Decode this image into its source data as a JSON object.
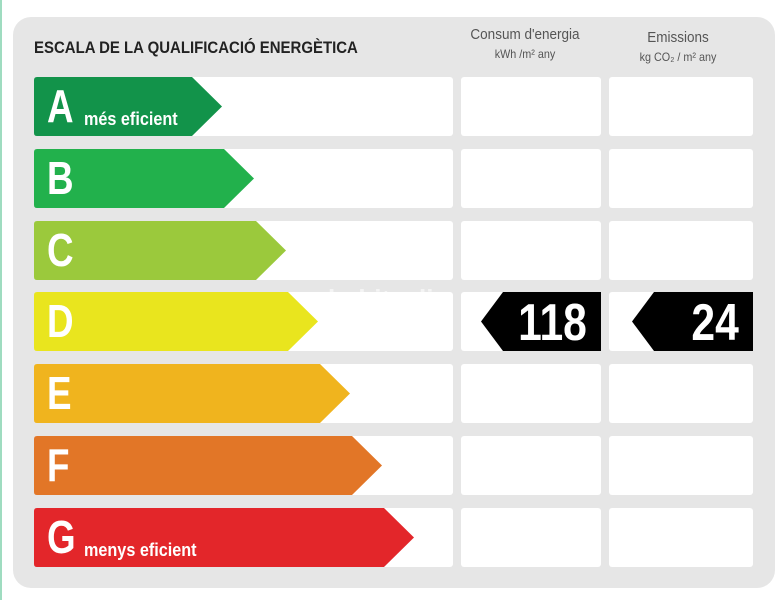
{
  "title": "ESCALA DE LA QUALIFICACIÓ ENERGÈTICA",
  "columns": {
    "consumption": {
      "title": "Consum d'energia",
      "unit": "kWh /m² any"
    },
    "emissions": {
      "title": "Emissions",
      "unit": "kg CO₂ / m² any"
    }
  },
  "ratings": [
    {
      "letter": "A",
      "label": "més eficient",
      "color": "#12934a"
    },
    {
      "letter": "B",
      "label": "",
      "color": "#22b14c"
    },
    {
      "letter": "C",
      "label": "",
      "color": "#9bc93c"
    },
    {
      "letter": "D",
      "label": "",
      "color": "#e9e51e"
    },
    {
      "letter": "E",
      "label": "",
      "color": "#f0b41e"
    },
    {
      "letter": "F",
      "label": "",
      "color": "#e27627"
    },
    {
      "letter": "G",
      "label": "menys eficient",
      "color": "#e3262a"
    }
  ],
  "result": {
    "rating": "D",
    "consumption": "118",
    "emissions": "24"
  },
  "watermark": "habitaclia"
}
